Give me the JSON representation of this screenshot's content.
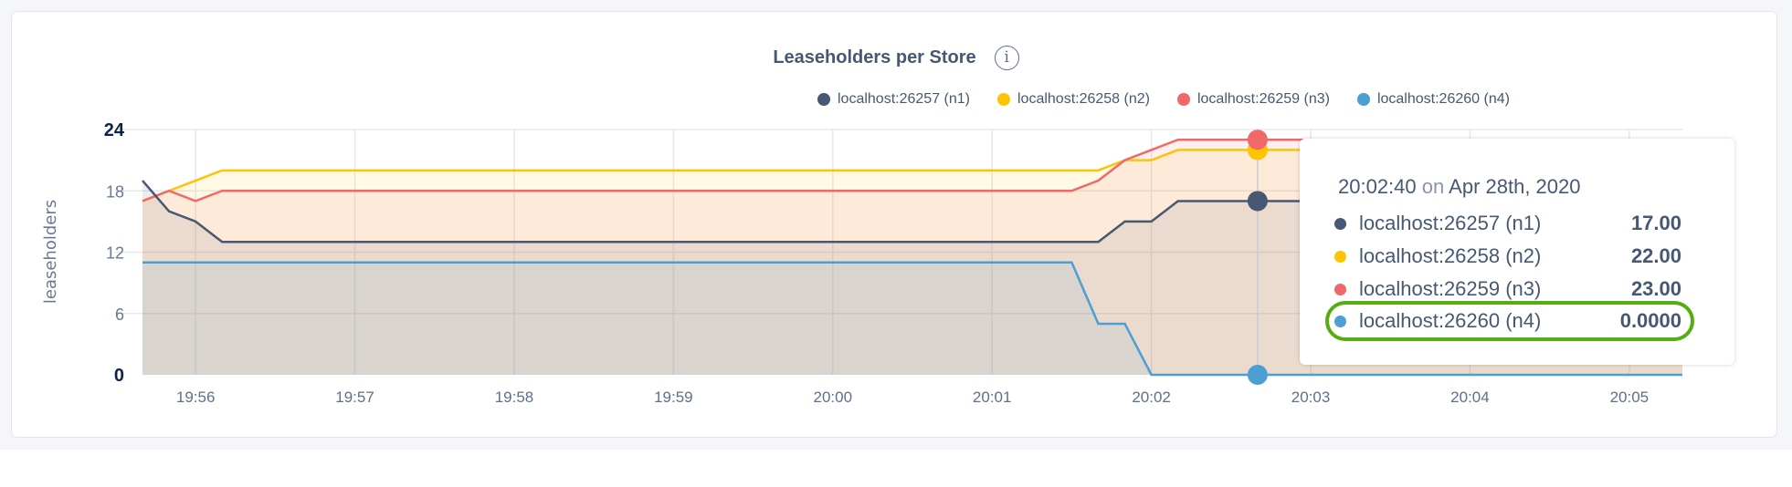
{
  "chart_data": {
    "type": "area",
    "title": "Leaseholders per Store",
    "ylabel": "leaseholders",
    "xlabel": "",
    "ylim": [
      0,
      24
    ],
    "yticks": [
      "0",
      "6",
      "12",
      "18",
      "24"
    ],
    "xtick_labels": [
      "19:56",
      "19:57",
      "19:58",
      "19:59",
      "20:00",
      "20:01",
      "20:02",
      "20:03",
      "20:04",
      "20:05"
    ],
    "x_start": "19:55:40",
    "x_end": "20:05:20",
    "x_step_seconds": 10,
    "grid": true,
    "legend_position": "top-right",
    "series": [
      {
        "name": "localhost:26257 (n1)",
        "color": "#475872",
        "values": [
          19,
          16,
          15,
          13,
          13,
          13,
          13,
          13,
          13,
          13,
          13,
          13,
          13,
          13,
          13,
          13,
          13,
          13,
          13,
          13,
          13,
          13,
          13,
          13,
          13,
          13,
          13,
          13,
          13,
          13,
          13,
          13,
          13,
          13,
          13,
          13,
          13,
          15,
          15,
          17,
          17,
          17,
          17,
          17,
          17,
          17,
          17,
          17,
          17,
          17,
          17,
          17,
          17,
          17,
          17,
          17,
          17,
          17,
          17
        ]
      },
      {
        "name": "localhost:26258 (n2)",
        "color": "#ffc400",
        "values": [
          17,
          18,
          19,
          20,
          20,
          20,
          20,
          20,
          20,
          20,
          20,
          20,
          20,
          20,
          20,
          20,
          20,
          20,
          20,
          20,
          20,
          20,
          20,
          20,
          20,
          20,
          20,
          20,
          20,
          20,
          20,
          20,
          20,
          20,
          20,
          20,
          20,
          21,
          21,
          22,
          22,
          22,
          22,
          22,
          22,
          22,
          22,
          22,
          22,
          22,
          22,
          22,
          22,
          22,
          22,
          22,
          22,
          22,
          22
        ]
      },
      {
        "name": "localhost:26259 (n3)",
        "color": "#f06868",
        "values": [
          17,
          18,
          17,
          18,
          18,
          18,
          18,
          18,
          18,
          18,
          18,
          18,
          18,
          18,
          18,
          18,
          18,
          18,
          18,
          18,
          18,
          18,
          18,
          18,
          18,
          18,
          18,
          18,
          18,
          18,
          18,
          18,
          18,
          18,
          18,
          18,
          19,
          21,
          22,
          23,
          23,
          23,
          23,
          23,
          23,
          23,
          23,
          23,
          23,
          23,
          23,
          23,
          23,
          23,
          23,
          23,
          23,
          23,
          23
        ]
      },
      {
        "name": "localhost:26260 (n4)",
        "color": "#4b9fd3",
        "values": [
          11,
          11,
          11,
          11,
          11,
          11,
          11,
          11,
          11,
          11,
          11,
          11,
          11,
          11,
          11,
          11,
          11,
          11,
          11,
          11,
          11,
          11,
          11,
          11,
          11,
          11,
          11,
          11,
          11,
          11,
          11,
          11,
          11,
          11,
          11,
          11,
          5,
          5,
          0,
          0,
          0,
          0,
          0,
          0,
          0,
          0,
          0,
          0,
          0,
          0,
          0,
          0,
          0,
          0,
          0,
          0,
          0,
          0,
          0
        ]
      }
    ],
    "hover": {
      "time": "20:02:40"
    }
  },
  "tooltip": {
    "time": "20:02:40",
    "on": "on",
    "date": "Apr 28th, 2020",
    "rows": [
      {
        "label": "localhost:26257 (n1)",
        "value": "17.00"
      },
      {
        "label": "localhost:26258 (n2)",
        "value": "22.00"
      },
      {
        "label": "localhost:26259 (n3)",
        "value": "23.00"
      },
      {
        "label": "localhost:26260 (n4)",
        "value": "0.0000"
      }
    ],
    "highlight_color": "#56ad10"
  },
  "info_icon": "info-circle-icon"
}
